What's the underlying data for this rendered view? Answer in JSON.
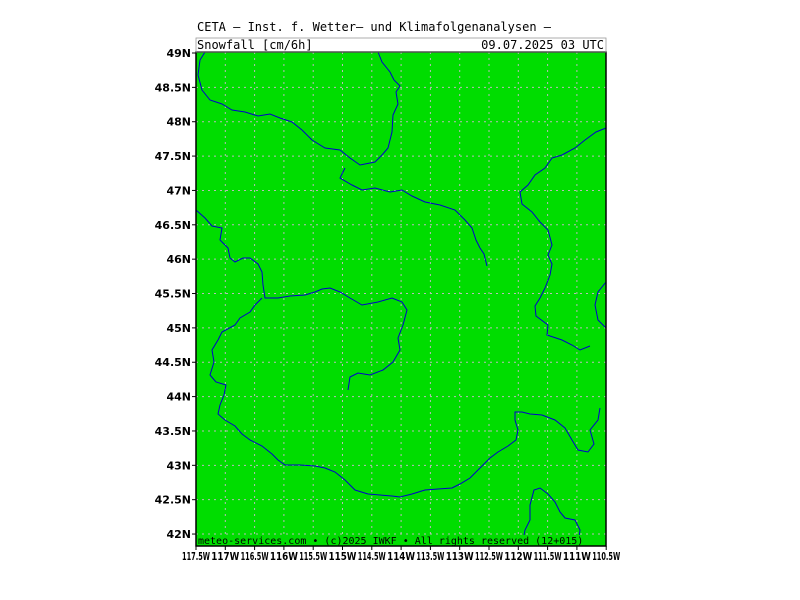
{
  "header": {
    "title": "CETA — Inst. f. Wetter— und Klimafolgenanalysen —",
    "parameter": "Snowfall [cm/6h]",
    "datetime": "09.07.2025 03 UTC"
  },
  "map": {
    "fill_color": "#00dd00",
    "border_color": "#0000cc",
    "grid_color": "#bbbbbb",
    "lat_labels": [
      "49N",
      "48.5N",
      "48N",
      "47.5N",
      "47N",
      "46.5N",
      "46N",
      "45.5N",
      "45N",
      "44.5N",
      "44N",
      "43.5N",
      "43N",
      "42.5N",
      "42N"
    ],
    "lon_labels": [
      "117.5W",
      "117W",
      "116.5W",
      "116W",
      "115.5W",
      "115W",
      "114.5W",
      "114W",
      "113.5W",
      "113W",
      "112.5W",
      "112W",
      "111.5W",
      "111W",
      "110.5W"
    ]
  },
  "footer": {
    "text": "meteo-services.com • (c)2025 IWKF • All rights reserved (12+015)"
  }
}
